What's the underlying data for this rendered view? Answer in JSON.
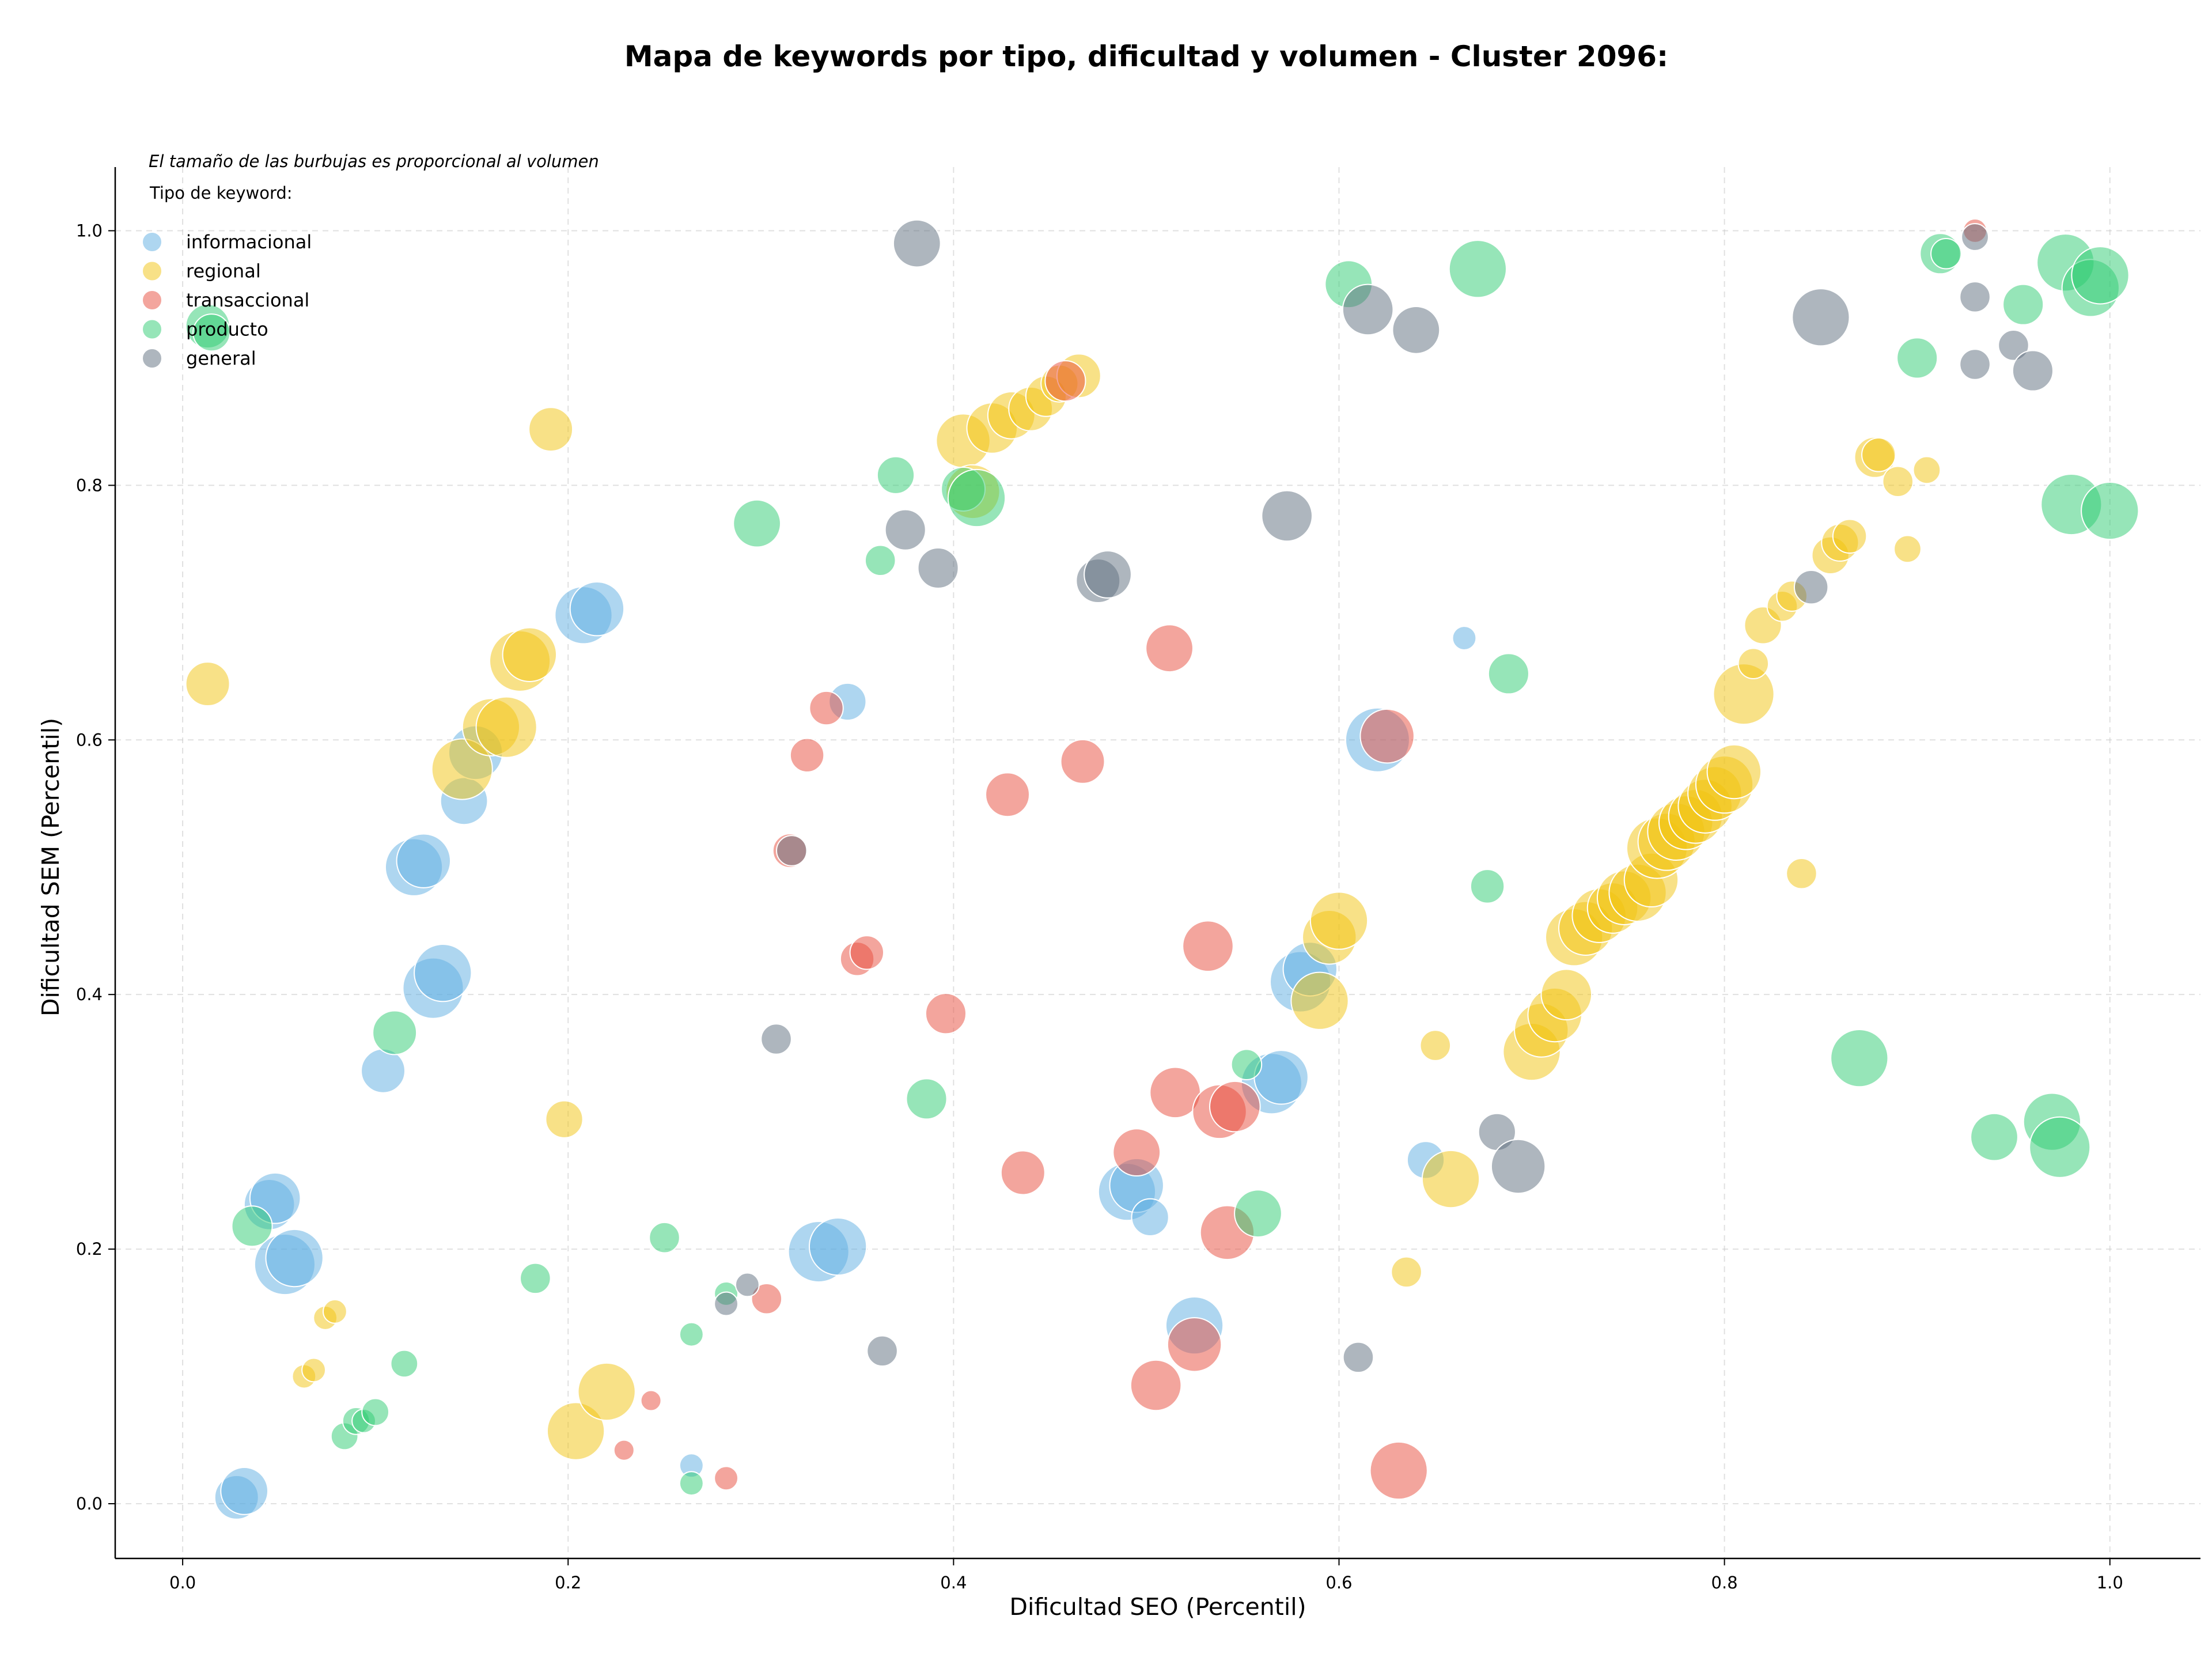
{
  "chart_data": {
    "type": "scatter",
    "title": "Mapa de keywords por tipo, dificultad y volumen - Cluster 2096:",
    "xlabel": "Dificultad SEO (Percentil)",
    "ylabel": "Dificultad SEM (Percentil)",
    "annotation": "El tamaño de las burbujas es proporcional al volumen",
    "legend_title": "Tipo de keyword:",
    "legend_position": "top-left",
    "xlim": [
      -0.035,
      1.047
    ],
    "ylim": [
      -0.043,
      1.05
    ],
    "x_ticks": [
      "0.0",
      "0.2",
      "0.4",
      "0.6",
      "0.8",
      "1.0"
    ],
    "y_ticks": [
      "0.0",
      "0.2",
      "0.4",
      "0.6",
      "0.8",
      "1.0"
    ],
    "grid": true,
    "series": [
      {
        "name": "informacional",
        "color": "#5dade2",
        "points": [
          [
            0.028,
            0.005,
            2.6
          ],
          [
            0.032,
            0.01,
            2.8
          ],
          [
            0.045,
            0.235,
            3.0
          ],
          [
            0.048,
            0.24,
            3.0
          ],
          [
            0.053,
            0.188,
            3.6
          ],
          [
            0.058,
            0.193,
            3.4
          ],
          [
            0.104,
            0.34,
            2.6
          ],
          [
            0.12,
            0.5,
            3.4
          ],
          [
            0.125,
            0.505,
            3.2
          ],
          [
            0.13,
            0.405,
            3.6
          ],
          [
            0.135,
            0.417,
            3.4
          ],
          [
            0.146,
            0.552,
            2.8
          ],
          [
            0.152,
            0.59,
            3.2
          ],
          [
            0.208,
            0.698,
            3.4
          ],
          [
            0.215,
            0.703,
            3.2
          ],
          [
            0.264,
            0.03,
            1.4
          ],
          [
            0.33,
            0.198,
            3.6
          ],
          [
            0.34,
            0.202,
            3.4
          ],
          [
            0.345,
            0.63,
            2.2
          ],
          [
            0.49,
            0.245,
            3.4
          ],
          [
            0.495,
            0.25,
            3.2
          ],
          [
            0.502,
            0.225,
            2.2
          ],
          [
            0.525,
            0.14,
            3.4
          ],
          [
            0.565,
            0.33,
            3.6
          ],
          [
            0.57,
            0.335,
            3.2
          ],
          [
            0.58,
            0.41,
            3.6
          ],
          [
            0.585,
            0.42,
            3.2
          ],
          [
            0.62,
            0.6,
            3.8
          ],
          [
            0.645,
            0.27,
            2.2
          ],
          [
            0.665,
            0.68,
            1.4
          ]
        ]
      },
      {
        "name": "regional",
        "color": "#f1c40f",
        "points": [
          [
            0.013,
            0.644,
            2.6
          ],
          [
            0.063,
            0.1,
            1.4
          ],
          [
            0.068,
            0.105,
            1.4
          ],
          [
            0.074,
            0.146,
            1.4
          ],
          [
            0.079,
            0.151,
            1.4
          ],
          [
            0.145,
            0.577,
            3.6
          ],
          [
            0.16,
            0.61,
            3.4
          ],
          [
            0.168,
            0.61,
            3.6
          ],
          [
            0.175,
            0.662,
            3.6
          ],
          [
            0.18,
            0.667,
            3.2
          ],
          [
            0.191,
            0.844,
            2.6
          ],
          [
            0.198,
            0.302,
            2.2
          ],
          [
            0.204,
            0.057,
            3.4
          ],
          [
            0.22,
            0.088,
            3.4
          ],
          [
            0.405,
            0.835,
            3.2
          ],
          [
            0.41,
            0.795,
            3.2
          ],
          [
            0.42,
            0.845,
            3.0
          ],
          [
            0.43,
            0.855,
            2.8
          ],
          [
            0.44,
            0.86,
            2.6
          ],
          [
            0.448,
            0.87,
            2.4
          ],
          [
            0.455,
            0.88,
            2.2
          ],
          [
            0.465,
            0.886,
            2.6
          ],
          [
            0.59,
            0.395,
            3.4
          ],
          [
            0.595,
            0.445,
            3.2
          ],
          [
            0.6,
            0.458,
            3.4
          ],
          [
            0.65,
            0.36,
            1.8
          ],
          [
            0.635,
            0.182,
            1.8
          ],
          [
            0.658,
            0.255,
            3.4
          ],
          [
            0.7,
            0.355,
            3.4
          ],
          [
            0.705,
            0.372,
            3.2
          ],
          [
            0.712,
            0.384,
            3.2
          ],
          [
            0.718,
            0.4,
            3.0
          ],
          [
            0.722,
            0.445,
            3.4
          ],
          [
            0.728,
            0.452,
            3.2
          ],
          [
            0.735,
            0.462,
            3.2
          ],
          [
            0.742,
            0.468,
            3.0
          ],
          [
            0.748,
            0.476,
            3.2
          ],
          [
            0.755,
            0.48,
            3.4
          ],
          [
            0.762,
            0.49,
            3.2
          ],
          [
            0.765,
            0.515,
            3.6
          ],
          [
            0.77,
            0.52,
            3.4
          ],
          [
            0.775,
            0.528,
            3.4
          ],
          [
            0.78,
            0.535,
            3.2
          ],
          [
            0.785,
            0.54,
            3.2
          ],
          [
            0.79,
            0.548,
            3.2
          ],
          [
            0.795,
            0.558,
            3.2
          ],
          [
            0.8,
            0.565,
            3.4
          ],
          [
            0.805,
            0.575,
            3.2
          ],
          [
            0.81,
            0.636,
            3.6
          ],
          [
            0.815,
            0.66,
            1.8
          ],
          [
            0.82,
            0.69,
            2.2
          ],
          [
            0.83,
            0.705,
            1.8
          ],
          [
            0.835,
            0.713,
            1.8
          ],
          [
            0.84,
            0.495,
            1.8
          ],
          [
            0.855,
            0.745,
            2.2
          ],
          [
            0.86,
            0.755,
            2.2
          ],
          [
            0.865,
            0.76,
            2.0
          ],
          [
            0.878,
            0.822,
            2.4
          ],
          [
            0.88,
            0.824,
            2.0
          ],
          [
            0.89,
            0.803,
            1.8
          ],
          [
            0.895,
            0.75,
            1.6
          ],
          [
            0.905,
            0.812,
            1.6
          ]
        ]
      },
      {
        "name": "transaccional",
        "color": "#e74c3c",
        "points": [
          [
            0.229,
            0.042,
            1.2
          ],
          [
            0.243,
            0.081,
            1.2
          ],
          [
            0.282,
            0.02,
            1.4
          ],
          [
            0.303,
            0.161,
            1.8
          ],
          [
            0.315,
            0.513,
            2.0
          ],
          [
            0.324,
            0.588,
            2.0
          ],
          [
            0.334,
            0.625,
            2.0
          ],
          [
            0.35,
            0.428,
            2.0
          ],
          [
            0.355,
            0.433,
            2.0
          ],
          [
            0.396,
            0.385,
            2.4
          ],
          [
            0.428,
            0.557,
            2.6
          ],
          [
            0.436,
            0.26,
            2.6
          ],
          [
            0.458,
            0.882,
            2.4
          ],
          [
            0.467,
            0.583,
            2.6
          ],
          [
            0.495,
            0.276,
            2.8
          ],
          [
            0.505,
            0.093,
            3.0
          ],
          [
            0.512,
            0.672,
            2.8
          ],
          [
            0.515,
            0.323,
            3.0
          ],
          [
            0.525,
            0.125,
            3.2
          ],
          [
            0.532,
            0.438,
            3.0
          ],
          [
            0.538,
            0.308,
            3.2
          ],
          [
            0.542,
            0.213,
            3.2
          ],
          [
            0.546,
            0.312,
            3.0
          ],
          [
            0.625,
            0.603,
            3.2
          ],
          [
            0.631,
            0.026,
            3.4
          ],
          [
            0.93,
            1.0,
            1.4
          ]
        ]
      },
      {
        "name": "producto",
        "color": "#2ecc71",
        "points": [
          [
            0.013,
            0.925,
            2.6
          ],
          [
            0.015,
            0.92,
            2.2
          ],
          [
            0.036,
            0.218,
            2.4
          ],
          [
            0.084,
            0.053,
            1.6
          ],
          [
            0.09,
            0.065,
            1.6
          ],
          [
            0.094,
            0.065,
            1.4
          ],
          [
            0.1,
            0.072,
            1.6
          ],
          [
            0.11,
            0.37,
            2.6
          ],
          [
            0.115,
            0.11,
            1.6
          ],
          [
            0.183,
            0.177,
            1.8
          ],
          [
            0.25,
            0.209,
            1.8
          ],
          [
            0.264,
            0.016,
            1.4
          ],
          [
            0.264,
            0.133,
            1.4
          ],
          [
            0.282,
            0.165,
            1.4
          ],
          [
            0.298,
            0.77,
            2.8
          ],
          [
            0.362,
            0.741,
            1.8
          ],
          [
            0.37,
            0.808,
            2.2
          ],
          [
            0.386,
            0.318,
            2.4
          ],
          [
            0.405,
            0.797,
            2.6
          ],
          [
            0.412,
            0.79,
            3.4
          ],
          [
            0.552,
            0.345,
            1.8
          ],
          [
            0.558,
            0.228,
            2.8
          ],
          [
            0.605,
            0.958,
            2.8
          ],
          [
            0.672,
            0.97,
            3.4
          ],
          [
            0.677,
            0.485,
            2.0
          ],
          [
            0.688,
            0.652,
            2.4
          ],
          [
            0.87,
            0.35,
            3.4
          ],
          [
            0.9,
            0.9,
            2.4
          ],
          [
            0.912,
            0.982,
            2.4
          ],
          [
            0.915,
            0.982,
            1.8
          ],
          [
            0.94,
            0.288,
            2.8
          ],
          [
            0.955,
            0.942,
            2.4
          ],
          [
            0.97,
            0.3,
            3.4
          ],
          [
            0.974,
            0.28,
            3.6
          ],
          [
            0.977,
            0.975,
            3.4
          ],
          [
            0.98,
            0.785,
            3.6
          ],
          [
            0.99,
            0.955,
            3.4
          ],
          [
            0.995,
            0.965,
            3.4
          ],
          [
            1.0,
            0.78,
            3.4
          ]
        ]
      },
      {
        "name": "general",
        "color": "#5d6d7e",
        "points": [
          [
            0.282,
            0.157,
            1.4
          ],
          [
            0.293,
            0.172,
            1.4
          ],
          [
            0.308,
            0.365,
            1.8
          ],
          [
            0.316,
            0.513,
            1.8
          ],
          [
            0.363,
            0.12,
            1.8
          ],
          [
            0.375,
            0.765,
            2.4
          ],
          [
            0.381,
            0.99,
            2.8
          ],
          [
            0.392,
            0.735,
            2.4
          ],
          [
            0.475,
            0.725,
            2.6
          ],
          [
            0.48,
            0.73,
            2.8
          ],
          [
            0.573,
            0.776,
            3.0
          ],
          [
            0.61,
            0.115,
            1.8
          ],
          [
            0.615,
            0.938,
            3.0
          ],
          [
            0.64,
            0.922,
            2.8
          ],
          [
            0.682,
            0.292,
            2.2
          ],
          [
            0.693,
            0.265,
            3.2
          ],
          [
            0.845,
            0.72,
            2.0
          ],
          [
            0.85,
            0.932,
            3.4
          ],
          [
            0.93,
            0.995,
            1.6
          ],
          [
            0.93,
            0.948,
            1.8
          ],
          [
            0.93,
            0.895,
            1.8
          ],
          [
            0.95,
            0.91,
            1.8
          ],
          [
            0.96,
            0.89,
            2.4
          ]
        ]
      }
    ]
  }
}
